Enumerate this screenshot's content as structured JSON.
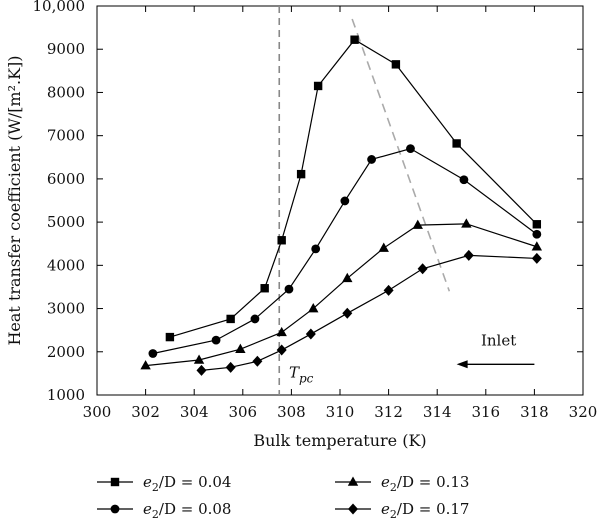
{
  "chart_data": {
    "type": "line",
    "xlabel": "Bulk temperature (K)",
    "ylabel": "Heat transfer coefficient (W/[m².K])",
    "xlim": [
      300,
      320
    ],
    "ylim": [
      1000,
      10000
    ],
    "xticks": [
      300,
      302,
      304,
      306,
      308,
      310,
      312,
      314,
      316,
      318,
      320
    ],
    "yticks": [
      1000,
      2000,
      3000,
      4000,
      5000,
      6000,
      7000,
      8000,
      9000,
      10000
    ],
    "xtick_labels": [
      "300",
      "302",
      "304",
      "306",
      "308",
      "310",
      "312",
      "314",
      "316",
      "318",
      "320"
    ],
    "ytick_labels": [
      "1000",
      "2000",
      "3000",
      "4000",
      "5000",
      "6000",
      "7000",
      "8000",
      "9000",
      "10,000"
    ],
    "grid": false,
    "legend_position": "bottom",
    "series": [
      {
        "name": "e2/D = 0.04",
        "marker": "square",
        "x": [
          303.0,
          305.5,
          306.9,
          307.6,
          308.4,
          309.1,
          310.6,
          312.3,
          314.8,
          318.1
        ],
        "y": [
          2340,
          2760,
          3470,
          4580,
          6110,
          8150,
          9220,
          8650,
          6820,
          4950
        ]
      },
      {
        "name": "e2/D = 0.08",
        "marker": "circle",
        "x": [
          302.3,
          304.9,
          306.5,
          307.9,
          309.0,
          310.2,
          311.3,
          312.9,
          315.1,
          318.1
        ],
        "y": [
          1960,
          2270,
          2760,
          3450,
          4380,
          5490,
          6450,
          6700,
          5980,
          4720
        ]
      },
      {
        "name": "e2/D = 0.13",
        "marker": "triangle",
        "x": [
          302.0,
          304.2,
          305.9,
          307.6,
          308.9,
          310.3,
          311.8,
          313.2,
          315.2,
          318.1
        ],
        "y": [
          1680,
          1810,
          2060,
          2450,
          3000,
          3700,
          4400,
          4930,
          4960,
          4430
        ]
      },
      {
        "name": "e2/D = 0.17",
        "marker": "diamond",
        "x": [
          304.3,
          305.5,
          306.6,
          307.6,
          308.8,
          310.3,
          312.0,
          313.4,
          315.3,
          318.1
        ],
        "y": [
          1570,
          1640,
          1780,
          2040,
          2410,
          2890,
          3420,
          3920,
          4230,
          4160
        ]
      }
    ],
    "reference_lines": {
      "tpc_x": 307.5,
      "tpc_label": "T",
      "tpc_subscript": "pc",
      "peak_trend": {
        "x": [
          310.5,
          314.5
        ],
        "y": [
          9700,
          3400
        ]
      }
    },
    "annotations": {
      "inlet_label": "Inlet",
      "inlet_arrow": {
        "from_x": 318.0,
        "to_x": 314.8,
        "y": 1710
      }
    },
    "legend_labels": [
      {
        "var": "e",
        "sub": "2",
        "rest": "/D = 0.04"
      },
      {
        "var": "e",
        "sub": "2",
        "rest": "/D = 0.08"
      },
      {
        "var": "e",
        "sub": "2",
        "rest": "/D = 0.13"
      },
      {
        "var": "e",
        "sub": "2",
        "rest": "/D = 0.17"
      }
    ],
    "colors": {
      "line": "#000000",
      "marker": "#000000",
      "dashed": "#aaaaaa",
      "tpc_dashed": "#888888"
    }
  }
}
